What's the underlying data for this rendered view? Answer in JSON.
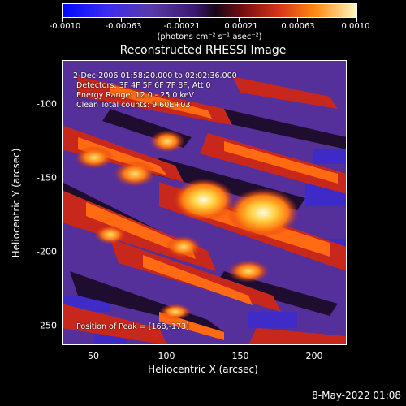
{
  "colorbar": {
    "labels": [
      "-0.0010",
      "-0.00063",
      "-0.00021",
      "0.00021",
      "0.00063",
      "0.0010"
    ],
    "units": "(photons cm⁻² s⁻¹ asec⁻²)"
  },
  "title": "Reconstructed RHESSI Image",
  "annotations": {
    "time": " 2-Dec-2006 01:58:20.000 to 02:02:36.000",
    "detectors": "Detectors: 3F 4F 5F 6F 7F 8F, Att 0",
    "energy": "Energy Range: 12.0 - 25.0 keV",
    "clean": "Clean     Total counts: 9.60E+03",
    "peak": "Position of Peak = [168,-173]"
  },
  "axes": {
    "xlabel": "Heliocentric X (arcsec)",
    "ylabel": "Heliocentric Y (arcsec)",
    "xticks": [
      "50",
      "100",
      "150",
      "200"
    ],
    "yticks": [
      "-100",
      "-150",
      "-200",
      "-250"
    ]
  },
  "footer": "8-May-2022 01:08"
}
